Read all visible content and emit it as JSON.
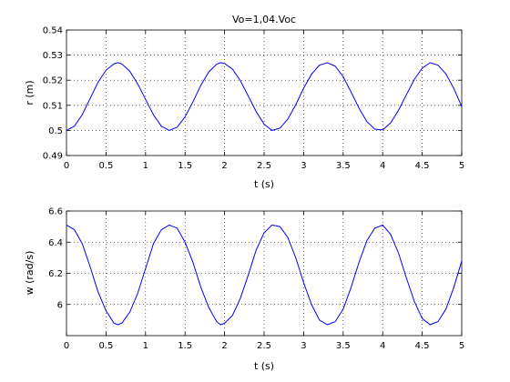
{
  "chart_data": [
    {
      "type": "line",
      "title": "Vo=1,04.Voc",
      "xlabel": "t (s)",
      "ylabel": "r (m)",
      "xlim": [
        0,
        5
      ],
      "ylim": [
        0.49,
        0.54
      ],
      "grid": true,
      "xticks": [
        0,
        0.5,
        1,
        1.5,
        2,
        2.5,
        3,
        3.5,
        4,
        4.5,
        5
      ],
      "xtick_labels": [
        "0",
        "0.5",
        "1",
        "1.5",
        "2",
        "2.5",
        "3",
        "3.5",
        "4",
        "4.5",
        "5"
      ],
      "yticks": [
        0.49,
        0.5,
        0.51,
        0.52,
        0.53,
        0.54
      ],
      "ytick_labels": [
        "0.49",
        "0.5",
        "0.51",
        "0.52",
        "0.53",
        "0.54"
      ],
      "series_color": "#0000ff",
      "series": [
        {
          "x": [
            0,
            0.1,
            0.2,
            0.3,
            0.4,
            0.5,
            0.6,
            0.65,
            0.7,
            0.8,
            0.9,
            1.0,
            1.1,
            1.2,
            1.3,
            1.4,
            1.5,
            1.6,
            1.7,
            1.8,
            1.9,
            1.95,
            2.0,
            2.1,
            2.2,
            2.3,
            2.4,
            2.5,
            2.6,
            2.7,
            2.8,
            2.9,
            3.0,
            3.1,
            3.2,
            3.3,
            3.4,
            3.5,
            3.6,
            3.7,
            3.8,
            3.9,
            4.0,
            4.1,
            4.2,
            4.3,
            4.4,
            4.5,
            4.6,
            4.7,
            4.8,
            4.9,
            5.0
          ],
          "y": [
            0.5,
            0.5017,
            0.5063,
            0.5128,
            0.5192,
            0.524,
            0.5265,
            0.527,
            0.5265,
            0.5236,
            0.5186,
            0.5124,
            0.5062,
            0.5017,
            0.5,
            0.5013,
            0.5054,
            0.5114,
            0.518,
            0.5233,
            0.5264,
            0.527,
            0.5267,
            0.5244,
            0.5198,
            0.5137,
            0.5075,
            0.5025,
            0.5,
            0.5009,
            0.5045,
            0.5102,
            0.5168,
            0.5224,
            0.526,
            0.527,
            0.5256,
            0.5214,
            0.5153,
            0.5089,
            0.5035,
            0.5005,
            0.5002,
            0.503,
            0.508,
            0.5142,
            0.5203,
            0.5248,
            0.527,
            0.526,
            0.5225,
            0.5167,
            0.5095
          ]
        }
      ]
    },
    {
      "type": "line",
      "title": "",
      "xlabel": "t (s)",
      "ylabel": "w (rad/s)",
      "xlim": [
        0,
        5
      ],
      "ylim": [
        5.8,
        6.6
      ],
      "grid": true,
      "xticks": [
        0,
        0.5,
        1,
        1.5,
        2,
        2.5,
        3,
        3.5,
        4,
        4.5,
        5
      ],
      "xtick_labels": [
        "0",
        "0.5",
        "1",
        "1.5",
        "2",
        "2.5",
        "3",
        "3.5",
        "4",
        "4.5",
        "5"
      ],
      "yticks": [
        6,
        6.2,
        6.4,
        6.6
      ],
      "ytick_labels": [
        "6",
        "6.2",
        "6.4",
        "6.6"
      ],
      "series_color": "#0000ff",
      "series": [
        {
          "x": [
            0,
            0.1,
            0.2,
            0.3,
            0.4,
            0.5,
            0.6,
            0.65,
            0.7,
            0.8,
            0.9,
            1.0,
            1.1,
            1.2,
            1.3,
            1.4,
            1.5,
            1.6,
            1.7,
            1.8,
            1.9,
            1.95,
            2.0,
            2.1,
            2.2,
            2.3,
            2.4,
            2.5,
            2.6,
            2.7,
            2.8,
            2.9,
            3.0,
            3.1,
            3.2,
            3.3,
            3.4,
            3.5,
            3.6,
            3.7,
            3.8,
            3.9,
            4.0,
            4.1,
            4.2,
            4.3,
            4.4,
            4.5,
            4.6,
            4.7,
            4.8,
            4.9,
            5.0
          ],
          "y": [
            6.51,
            6.48,
            6.39,
            6.24,
            6.08,
            5.96,
            5.88,
            5.87,
            5.88,
            5.95,
            6.07,
            6.23,
            6.39,
            6.48,
            6.51,
            6.49,
            6.4,
            6.27,
            6.11,
            5.98,
            5.89,
            5.87,
            5.88,
            5.93,
            6.04,
            6.19,
            6.35,
            6.46,
            6.51,
            6.5,
            6.43,
            6.3,
            6.14,
            6.0,
            5.9,
            5.87,
            5.89,
            5.97,
            6.11,
            6.27,
            6.41,
            6.49,
            6.51,
            6.45,
            6.33,
            6.17,
            6.02,
            5.91,
            5.87,
            5.89,
            5.97,
            6.11,
            6.28
          ]
        }
      ]
    }
  ]
}
